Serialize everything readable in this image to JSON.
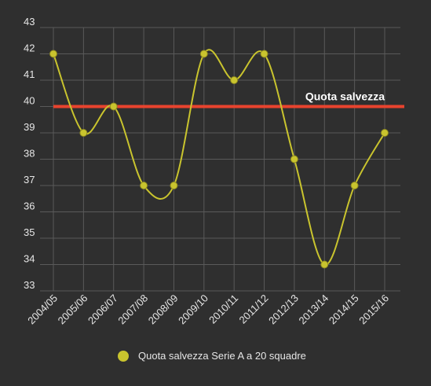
{
  "chart_data": {
    "type": "line",
    "categories": [
      "2004/05",
      "2005/06",
      "2006/07",
      "2007/08",
      "2008/09",
      "2009/10",
      "2010/11",
      "2011/12",
      "2012/13",
      "2013/14",
      "2014/15",
      "2015/16"
    ],
    "series": [
      {
        "name": "Quota salvezza Serie A a 20 squadre",
        "values": [
          42,
          39,
          40,
          37,
          37,
          42,
          41,
          42,
          38,
          34,
          37,
          39
        ],
        "color": "#c9c42e"
      }
    ],
    "ylim": [
      33,
      43
    ],
    "yticks": [
      33,
      34,
      35,
      36,
      37,
      38,
      39,
      40,
      41,
      42,
      43
    ],
    "grid": true,
    "reference_line": {
      "value": 40,
      "label": "Quota salvezza",
      "color": "#e8432e"
    },
    "legend": "bottom"
  }
}
